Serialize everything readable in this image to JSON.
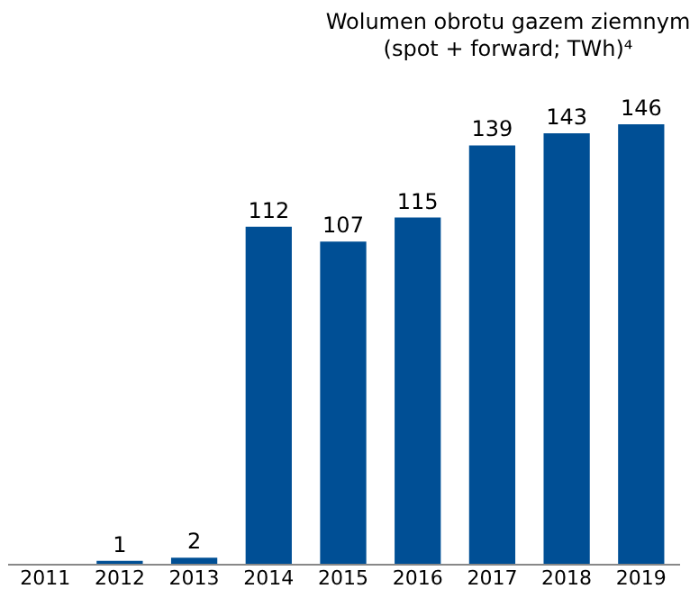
{
  "chart_data": {
    "type": "bar",
    "title": "Wolumen obrotu gazem ziemnym",
    "subtitle": "(spot + forward; TWh)⁴",
    "categories": [
      "2011",
      "2012",
      "2013",
      "2014",
      "2015",
      "2016",
      "2017",
      "2018",
      "2019"
    ],
    "values": [
      null,
      1,
      2,
      112,
      107,
      115,
      139,
      143,
      146
    ],
    "color": "#004f95",
    "data_labels": true
  }
}
